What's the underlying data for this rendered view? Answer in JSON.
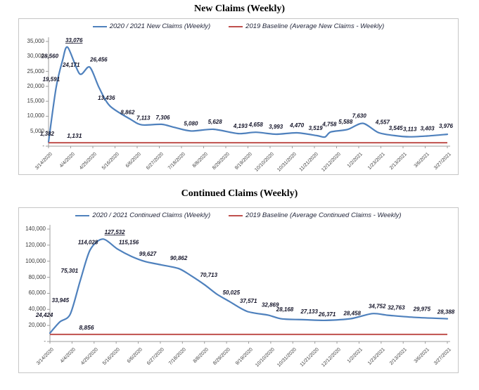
{
  "colors": {
    "background": "#ffffff",
    "chart_border": "#c6c6c6",
    "axis_line": "#9e9e9e",
    "axis_text": "#3d3d3d",
    "data_label_text": "#15152a",
    "legend_text": "#1f2338",
    "title_text": "#000000",
    "series_blue": "#4F81BD",
    "baseline_red": "#C0504D"
  },
  "chart_data": [
    {
      "type": "line",
      "title": "New Claims (Weekly)",
      "legend_position": "top",
      "grid": false,
      "y_max": 35000,
      "y_ticks": [
        {
          "v": 35000,
          "t": "35,000"
        },
        {
          "v": 30000,
          "t": "30,000"
        },
        {
          "v": 25000,
          "t": "25,000"
        },
        {
          "v": 20000,
          "t": "20,000"
        },
        {
          "v": 15000,
          "t": "15,000"
        },
        {
          "v": 10000,
          "t": "10,000"
        },
        {
          "v": 5000,
          "t": "5,000"
        },
        {
          "v": 0,
          "t": "-"
        }
      ],
      "x_ticks": [
        "3/14/2020",
        "4/4/2020",
        "4/25/2020",
        "5/16/2020",
        "6/6/2020",
        "6/27/2020",
        "7/18/2020",
        "8/8/2020",
        "8/29/2020",
        "9/19/2020",
        "10/10/2020",
        "10/31/2020",
        "11/21/2020",
        "12/12/2020",
        "1/2/2021",
        "1/23/2021",
        "2/13/2021",
        "3/6/2021",
        "3/27/2021"
      ],
      "series": [
        {
          "name": "2020 / 2021 New Claims (Weekly)",
          "color": "#4F81BD",
          "kind": "line",
          "points": [
            {
              "x": 0.0,
              "v": 1382,
              "l": "1,382",
              "dx": -2,
              "dy": -9
            },
            {
              "x": 0.019,
              "v": 19591,
              "l": "19,591",
              "dx": -7,
              "dy": -9
            },
            {
              "x": 0.035,
              "v": 28560,
              "l": "28,560",
              "dx": -18,
              "dy": -4
            },
            {
              "x": 0.048,
              "v": 33076,
              "l": "33,076",
              "dx": 9,
              "dy": -7,
              "u": true
            },
            {
              "x": 0.078,
              "v": 24171,
              "l": "24,171",
              "dx": -12,
              "dy": -10
            },
            {
              "x": 0.103,
              "v": 26456,
              "l": "26,456",
              "dx": 13,
              "dy": -8
            },
            {
              "x": 0.127,
              "v": 19500
            },
            {
              "x": 0.154,
              "v": 13436,
              "l": "13,436",
              "dx": -5,
              "dy": -9
            },
            {
              "x": 0.207,
              "v": 8862,
              "l": "8,862",
              "dx": -5,
              "dy": -8
            },
            {
              "x": 0.234,
              "v": 7113,
              "l": "7,113",
              "dx": 2,
              "dy": -7
            },
            {
              "x": 0.283,
              "v": 7306,
              "l": "7,306",
              "dx": 2,
              "dy": -7
            },
            {
              "x": 0.315,
              "v": 6300
            },
            {
              "x": 0.357,
              "v": 5080,
              "l": "5,080",
              "dx": 0,
              "dy": -8
            },
            {
              "x": 0.414,
              "v": 5628,
              "l": "5,628",
              "dx": 2,
              "dy": -8
            },
            {
              "x": 0.476,
              "v": 4193,
              "l": "4,193",
              "dx": 3,
              "dy": -8
            },
            {
              "x": 0.52,
              "v": 4658,
              "l": "4,658",
              "dx": 0,
              "dy": -8
            },
            {
              "x": 0.57,
              "v": 3993,
              "l": "3,993",
              "dx": 0,
              "dy": -8
            },
            {
              "x": 0.623,
              "v": 4470,
              "l": "4,470",
              "dx": 0,
              "dy": -8
            },
            {
              "x": 0.673,
              "v": 3519,
              "l": "3,519",
              "dx": -2,
              "dy": -8
            },
            {
              "x": 0.693,
              "v": 3050
            },
            {
              "x": 0.708,
              "v": 4758,
              "l": "4,758",
              "dx": -2,
              "dy": -8
            },
            {
              "x": 0.75,
              "v": 5588,
              "l": "5,588",
              "dx": -3,
              "dy": -8
            },
            {
              "x": 0.788,
              "v": 7630,
              "l": "7,630",
              "dx": -5,
              "dy": -8
            },
            {
              "x": 0.827,
              "v": 4557,
              "l": "4,557",
              "dx": 6,
              "dy": -12
            },
            {
              "x": 0.867,
              "v": 3545,
              "l": "3,545",
              "dx": 2,
              "dy": -8
            },
            {
              "x": 0.906,
              "v": 3113,
              "l": "3,113",
              "dx": 0,
              "dy": -8
            },
            {
              "x": 0.95,
              "v": 3403,
              "l": "3,403",
              "dx": 0,
              "dy": -8
            },
            {
              "x": 1.0,
              "v": 3976,
              "l": "3,976",
              "dx": -2,
              "dy": -9
            }
          ]
        },
        {
          "name": "2019 Baseline (Average New Claims - Weekly)",
          "color": "#C0504D",
          "kind": "baseline",
          "value": 1131,
          "value_label": "1,131",
          "label_x": 0.065
        }
      ]
    },
    {
      "type": "line",
      "title": "Continued Claims (Weekly)",
      "legend_position": "top",
      "grid": false,
      "y_max": 140000,
      "y_ticks": [
        {
          "v": 140000,
          "t": "140,000"
        },
        {
          "v": 120000,
          "t": "120,000"
        },
        {
          "v": 100000,
          "t": "100,000"
        },
        {
          "v": 80000,
          "t": "80,000"
        },
        {
          "v": 60000,
          "t": "60,000"
        },
        {
          "v": 40000,
          "t": "40,000"
        },
        {
          "v": 20000,
          "t": "20,000"
        },
        {
          "v": 0,
          "t": "-"
        }
      ],
      "x_ticks": [
        "3/14/2020",
        "4/4/2020",
        "4/25/2020",
        "5/16/2020",
        "6/6/2020",
        "6/27/2020",
        "7/18/2020",
        "8/8/2020",
        "8/29/2020",
        "9/19/2020",
        "10/10/2020",
        "10/31/2020",
        "11/21/2020",
        "12/12/2020",
        "1/2/2021",
        "1/23/2021",
        "2/13/2021",
        "3/6/2021",
        "3/27/2021"
      ],
      "series": [
        {
          "name": "2020 / 2021 Continued Claims (Weekly)",
          "color": "#4F81BD",
          "kind": "line",
          "points": [
            {
              "x": 0.0,
              "v": 10500
            },
            {
              "x": 0.025,
              "v": 24424,
              "l": "24,424",
              "dx": -22,
              "dy": -7
            },
            {
              "x": 0.051,
              "v": 33945,
              "l": "33,945",
              "dx": -14,
              "dy": -17
            },
            {
              "x": 0.076,
              "v": 75301,
              "l": "75,301",
              "dx": -15,
              "dy": -12
            },
            {
              "x": 0.101,
              "v": 114028,
              "l": "114,028",
              "dx": -3,
              "dy": -8
            },
            {
              "x": 0.133,
              "v": 127532,
              "l": "127,532",
              "dx": 17,
              "dy": -7,
              "u": true
            },
            {
              "x": 0.17,
              "v": 115156,
              "l": "115,156",
              "dx": 16,
              "dy": -7
            },
            {
              "x": 0.205,
              "v": 106000
            },
            {
              "x": 0.239,
              "v": 99627,
              "l": "99,627",
              "dx": 4,
              "dy": -8
            },
            {
              "x": 0.28,
              "v": 95500
            },
            {
              "x": 0.324,
              "v": 90862,
              "l": "90,862",
              "dx": 0,
              "dy": -12
            },
            {
              "x": 0.355,
              "v": 82000
            },
            {
              "x": 0.389,
              "v": 70713,
              "l": "70,713",
              "dx": 6,
              "dy": -11
            },
            {
              "x": 0.42,
              "v": 59000
            },
            {
              "x": 0.451,
              "v": 50025,
              "l": "50,025",
              "dx": 3,
              "dy": -10
            },
            {
              "x": 0.496,
              "v": 37571,
              "l": "37,571",
              "dx": 2,
              "dy": -12
            },
            {
              "x": 0.549,
              "v": 32869,
              "l": "32,869",
              "dx": 3,
              "dy": -12
            },
            {
              "x": 0.584,
              "v": 28168,
              "l": "28,168",
              "dx": 4,
              "dy": -11
            },
            {
              "x": 0.642,
              "v": 27133,
              "l": "27,133",
              "dx": 6,
              "dy": -9
            },
            {
              "x": 0.694,
              "v": 26371,
              "l": "26,371",
              "dx": 2,
              "dy": -6
            },
            {
              "x": 0.757,
              "v": 28458,
              "l": "28,458",
              "dx": 2,
              "dy": -5
            },
            {
              "x": 0.811,
              "v": 34752,
              "l": "34,752",
              "dx": 7,
              "dy": -8
            },
            {
              "x": 0.85,
              "v": 32763,
              "l": "32,763",
              "dx": 12,
              "dy": -8
            },
            {
              "x": 0.92,
              "v": 29975,
              "l": "29,975",
              "dx": 9,
              "dy": -9
            },
            {
              "x": 1.0,
              "v": 28388,
              "l": "28,388",
              "dx": -2,
              "dy": -7
            }
          ]
        },
        {
          "name": "2019 Baseline (Average Continued Claims - Weekly)",
          "color": "#C0504D",
          "kind": "baseline",
          "value": 8856,
          "value_label": "8,856",
          "label_x": 0.092
        }
      ]
    }
  ]
}
